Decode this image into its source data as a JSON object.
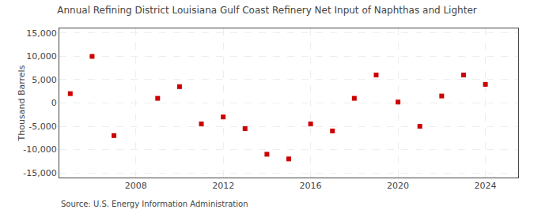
{
  "chart_data": {
    "type": "scatter",
    "title": "Annual Refining District Louisiana Gulf Coast Refinery Net Input of Naphthas and Lighter",
    "ylabel": "Thousand Barrels",
    "annotations": [
      "Source: U.S. Energy Information Administration"
    ],
    "x": [
      2005,
      2006,
      2007,
      2009,
      2010,
      2011,
      2012,
      2013,
      2014,
      2015,
      2016,
      2017,
      2018,
      2019,
      2020,
      2021,
      2022,
      2023,
      2024
    ],
    "values": [
      2000,
      10000,
      -7000,
      1000,
      3500,
      -4500,
      -3000,
      -5500,
      -11000,
      -12000,
      -4500,
      -6000,
      1000,
      6000,
      200,
      -5000,
      1500,
      6000,
      4000
    ],
    "color": "#cc0000",
    "marker": "square",
    "xlim": [
      2004.5,
      2025.5
    ],
    "xticks": [
      2008,
      2012,
      2016,
      2020,
      2024
    ],
    "ylim": [
      -16000,
      16000
    ],
    "yticks": [
      {
        "value": -15000,
        "label": "-15,000"
      },
      {
        "value": -10000,
        "label": "-10,000"
      },
      {
        "value": -5000,
        "label": "-5,000"
      },
      0,
      {
        "value": 5000,
        "label": "5,000"
      },
      {
        "value": 10000,
        "label": "10,000"
      },
      {
        "value": 15000,
        "label": "15,000"
      }
    ],
    "grid": true
  }
}
